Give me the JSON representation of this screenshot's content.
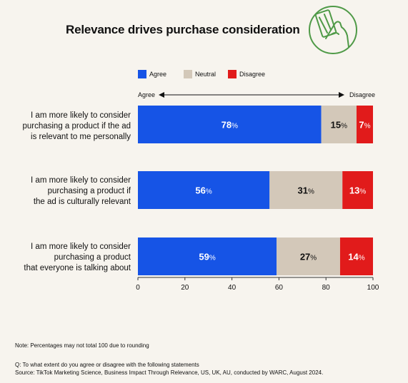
{
  "title": "Relevance drives purchase consideration",
  "icon": "hand-holding-card-icon",
  "colors": {
    "agree": "#1654e6",
    "neutral": "#d3c8b9",
    "disagree": "#e11b1b",
    "accent": "#4f9a47"
  },
  "legend": {
    "agree": "Agree",
    "neutral": "Neutral",
    "disagree": "Disagree"
  },
  "scale": {
    "left": "Agree",
    "right": "Disagree"
  },
  "rows": [
    {
      "label_lines": [
        "I am more likely to consider",
        "purchasing a product if the ad",
        "is relevant to me personally"
      ]
    },
    {
      "label_lines": [
        "I am more likely to consider",
        "purchasing a product if",
        "the ad is culturally relevant"
      ]
    },
    {
      "label_lines": [
        "I am more likely to consider",
        "purchasing a product",
        "that everyone is talking about"
      ]
    }
  ],
  "footer": {
    "note": "Note: Percentages may not total 100 due to rounding",
    "question": "Q: To what extent do you agree or disagree with the following statements",
    "source": "Source: TikTok Marketing Science, Business Impact Through Relevance, US, UK, AU, conducted by WARC, August 2024."
  },
  "chart_data": {
    "type": "bar",
    "orientation": "horizontal",
    "stacked": true,
    "title": "Relevance drives purchase consideration",
    "categories": [
      "I am more likely to consider purchasing a product if the ad is relevant to me personally",
      "I am more likely to consider purchasing a product if the ad is culturally relevant",
      "I am more likely to consider purchasing a product that everyone is talking about"
    ],
    "series": [
      {
        "name": "Agree",
        "values": [
          78,
          56,
          59
        ]
      },
      {
        "name": "Neutral",
        "values": [
          15,
          31,
          27
        ]
      },
      {
        "name": "Disagree",
        "values": [
          7,
          13,
          14
        ]
      }
    ],
    "xlim": [
      0,
      100
    ],
    "xticks": [
      0,
      20,
      40,
      60,
      80,
      100
    ],
    "legend_position": "top-left",
    "grid": false
  }
}
